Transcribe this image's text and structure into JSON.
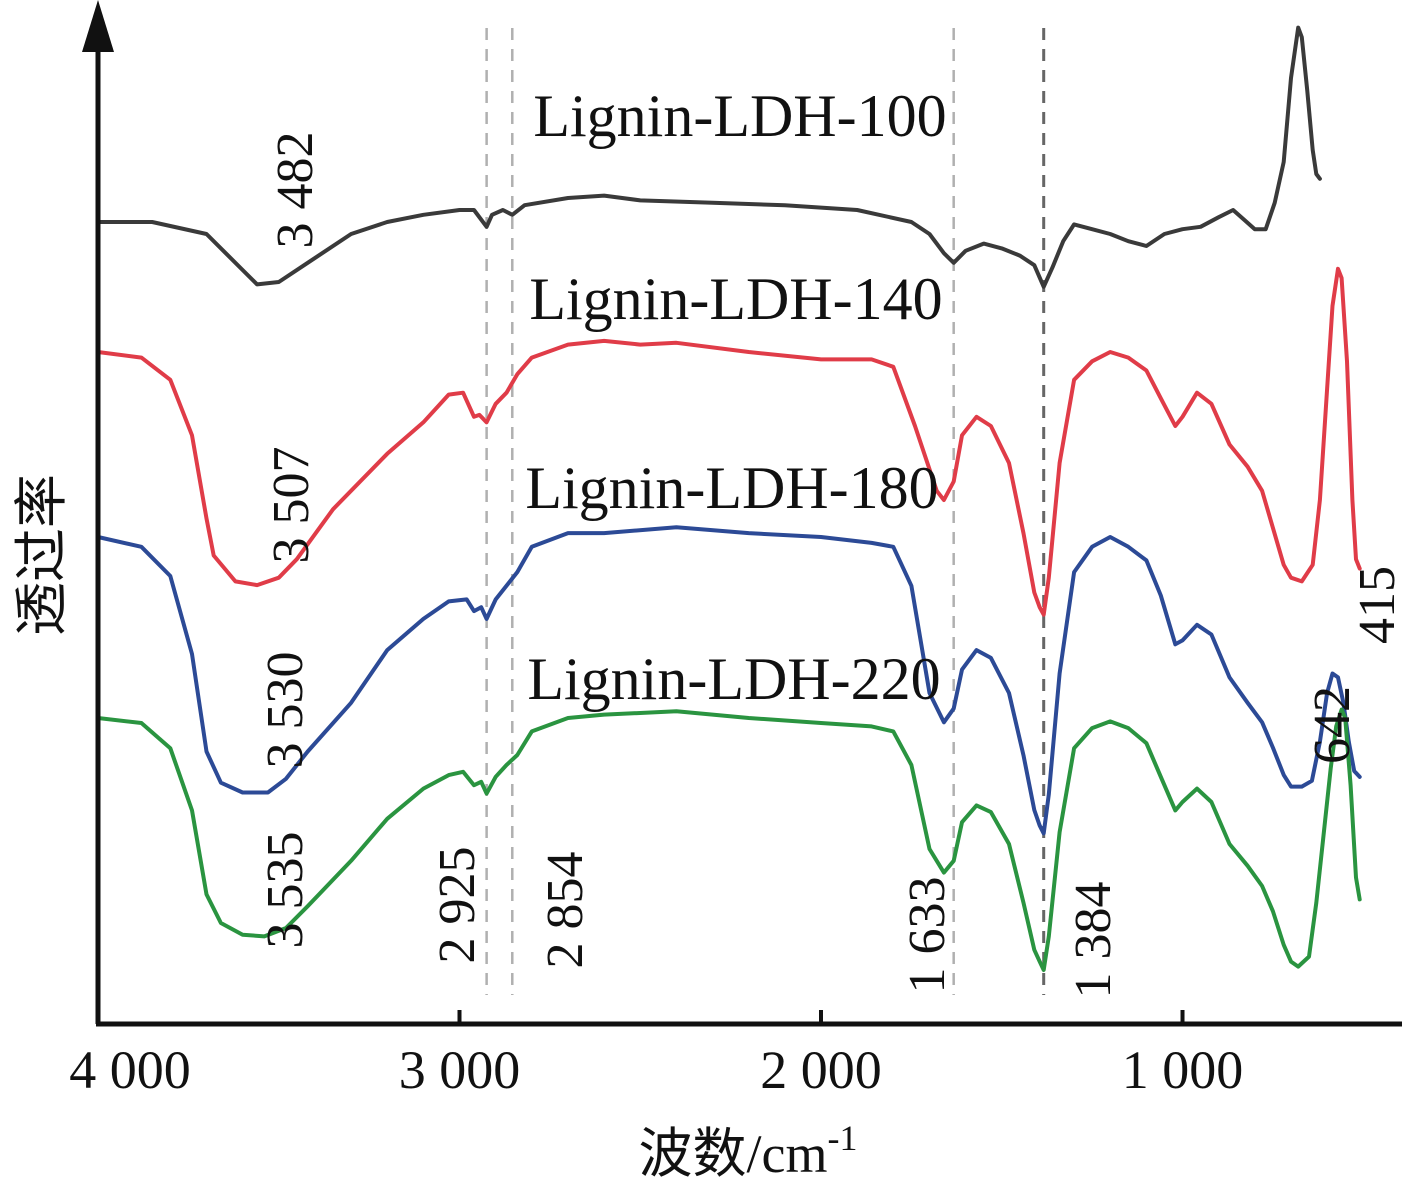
{
  "chart_data": {
    "type": "line",
    "title": "",
    "xlabel": "波数/cm",
    "xlabel_superscript": "-1",
    "ylabel": "透过率",
    "xlim": [
      4000,
      415
    ],
    "x_reversed": true,
    "x_ticks": [
      4000,
      3000,
      2000,
      1000
    ],
    "x_tick_labels": [
      "4 000",
      "3 000",
      "2 000",
      "1 000"
    ],
    "grid": false,
    "legend": "none",
    "reference_lines": [
      {
        "x": 2925,
        "label": "2 925"
      },
      {
        "x": 2854,
        "label": "2 854"
      },
      {
        "x": 1633,
        "label": "1 633"
      },
      {
        "x": 1384,
        "label": "1 384"
      }
    ],
    "series": [
      {
        "name": "Lignin-LDH-100",
        "color": "#3a3a3a",
        "peak_labels": [
          {
            "x": 3482,
            "text": "3 482"
          }
        ],
        "points": [
          [
            4000,
            0.05
          ],
          [
            3850,
            0.05
          ],
          [
            3700,
            0.1
          ],
          [
            3600,
            0.25
          ],
          [
            3560,
            0.31
          ],
          [
            3500,
            0.3
          ],
          [
            3420,
            0.22
          ],
          [
            3300,
            0.1
          ],
          [
            3200,
            0.05
          ],
          [
            3100,
            0.02
          ],
          [
            3000,
            0.0
          ],
          [
            2960,
            0.0
          ],
          [
            2925,
            0.07
          ],
          [
            2910,
            0.02
          ],
          [
            2880,
            0.0
          ],
          [
            2854,
            0.02
          ],
          [
            2820,
            -0.02
          ],
          [
            2700,
            -0.05
          ],
          [
            2600,
            -0.06
          ],
          [
            2500,
            -0.04
          ],
          [
            2300,
            -0.03
          ],
          [
            2100,
            -0.02
          ],
          [
            1900,
            0.0
          ],
          [
            1750,
            0.05
          ],
          [
            1700,
            0.1
          ],
          [
            1660,
            0.18
          ],
          [
            1633,
            0.22
          ],
          [
            1600,
            0.17
          ],
          [
            1550,
            0.14
          ],
          [
            1500,
            0.16
          ],
          [
            1450,
            0.19
          ],
          [
            1410,
            0.23
          ],
          [
            1384,
            0.32
          ],
          [
            1360,
            0.24
          ],
          [
            1330,
            0.13
          ],
          [
            1300,
            0.06
          ],
          [
            1250,
            0.08
          ],
          [
            1200,
            0.1
          ],
          [
            1150,
            0.13
          ],
          [
            1100,
            0.15
          ],
          [
            1050,
            0.1
          ],
          [
            1000,
            0.08
          ],
          [
            950,
            0.07
          ],
          [
            900,
            0.03
          ],
          [
            860,
            0.0
          ],
          [
            830,
            0.04
          ],
          [
            800,
            0.08
          ],
          [
            770,
            0.08
          ],
          [
            745,
            -0.03
          ],
          [
            720,
            -0.2
          ],
          [
            700,
            -0.55
          ],
          [
            680,
            -0.76
          ],
          [
            670,
            -0.72
          ],
          [
            655,
            -0.5
          ],
          [
            640,
            -0.25
          ],
          [
            630,
            -0.15
          ],
          [
            620,
            -0.13
          ]
        ]
      },
      {
        "name": "Lignin-LDH-140",
        "color": "#e03c48",
        "peak_labels": [
          {
            "x": 3507,
            "text": "3 507"
          }
        ],
        "points": [
          [
            4000,
            0.0
          ],
          [
            3880,
            0.03
          ],
          [
            3800,
            0.15
          ],
          [
            3740,
            0.45
          ],
          [
            3700,
            0.9
          ],
          [
            3680,
            1.1
          ],
          [
            3620,
            1.24
          ],
          [
            3560,
            1.26
          ],
          [
            3500,
            1.22
          ],
          [
            3450,
            1.12
          ],
          [
            3350,
            0.85
          ],
          [
            3200,
            0.55
          ],
          [
            3100,
            0.38
          ],
          [
            3030,
            0.23
          ],
          [
            2990,
            0.22
          ],
          [
            2960,
            0.35
          ],
          [
            2945,
            0.34
          ],
          [
            2925,
            0.38
          ],
          [
            2900,
            0.28
          ],
          [
            2870,
            0.22
          ],
          [
            2840,
            0.12
          ],
          [
            2800,
            0.03
          ],
          [
            2700,
            -0.04
          ],
          [
            2600,
            -0.06
          ],
          [
            2500,
            -0.04
          ],
          [
            2400,
            -0.05
          ],
          [
            2200,
            0.0
          ],
          [
            2000,
            0.04
          ],
          [
            1860,
            0.04
          ],
          [
            1800,
            0.08
          ],
          [
            1740,
            0.4
          ],
          [
            1680,
            0.75
          ],
          [
            1660,
            0.8
          ],
          [
            1633,
            0.7
          ],
          [
            1610,
            0.45
          ],
          [
            1570,
            0.35
          ],
          [
            1530,
            0.4
          ],
          [
            1480,
            0.6
          ],
          [
            1440,
            0.98
          ],
          [
            1410,
            1.3
          ],
          [
            1395,
            1.38
          ],
          [
            1384,
            1.42
          ],
          [
            1370,
            1.22
          ],
          [
            1340,
            0.6
          ],
          [
            1300,
            0.15
          ],
          [
            1250,
            0.05
          ],
          [
            1200,
            0.0
          ],
          [
            1150,
            0.03
          ],
          [
            1100,
            0.1
          ],
          [
            1060,
            0.25
          ],
          [
            1020,
            0.4
          ],
          [
            1000,
            0.35
          ],
          [
            960,
            0.22
          ],
          [
            920,
            0.28
          ],
          [
            870,
            0.5
          ],
          [
            820,
            0.62
          ],
          [
            780,
            0.75
          ],
          [
            750,
            0.95
          ],
          [
            720,
            1.15
          ],
          [
            700,
            1.22
          ],
          [
            670,
            1.24
          ],
          [
            640,
            1.15
          ],
          [
            620,
            0.8
          ],
          [
            600,
            0.2
          ],
          [
            585,
            -0.25
          ],
          [
            570,
            -0.45
          ],
          [
            560,
            -0.4
          ],
          [
            545,
            0.05
          ],
          [
            530,
            0.8
          ],
          [
            520,
            1.12
          ],
          [
            510,
            1.17
          ]
        ]
      },
      {
        "name": "Lignin-LDH-180",
        "color": "#2c4a96",
        "peak_labels": [
          {
            "x": 3530,
            "text": "3 530"
          },
          {
            "x": 642,
            "text": "642"
          },
          {
            "x": 415,
            "text": "415"
          }
        ],
        "points": [
          [
            4000,
            0.0
          ],
          [
            3880,
            0.05
          ],
          [
            3800,
            0.2
          ],
          [
            3740,
            0.6
          ],
          [
            3700,
            1.1
          ],
          [
            3660,
            1.26
          ],
          [
            3600,
            1.31
          ],
          [
            3530,
            1.31
          ],
          [
            3480,
            1.24
          ],
          [
            3420,
            1.1
          ],
          [
            3300,
            0.85
          ],
          [
            3200,
            0.58
          ],
          [
            3100,
            0.42
          ],
          [
            3030,
            0.33
          ],
          [
            2980,
            0.32
          ],
          [
            2960,
            0.38
          ],
          [
            2940,
            0.36
          ],
          [
            2925,
            0.42
          ],
          [
            2900,
            0.32
          ],
          [
            2870,
            0.25
          ],
          [
            2840,
            0.18
          ],
          [
            2800,
            0.05
          ],
          [
            2700,
            -0.02
          ],
          [
            2600,
            -0.02
          ],
          [
            2400,
            -0.05
          ],
          [
            2200,
            -0.02
          ],
          [
            2000,
            0.0
          ],
          [
            1860,
            0.03
          ],
          [
            1800,
            0.05
          ],
          [
            1750,
            0.25
          ],
          [
            1700,
            0.8
          ],
          [
            1660,
            0.95
          ],
          [
            1633,
            0.88
          ],
          [
            1610,
            0.68
          ],
          [
            1570,
            0.58
          ],
          [
            1530,
            0.62
          ],
          [
            1480,
            0.8
          ],
          [
            1440,
            1.12
          ],
          [
            1410,
            1.4
          ],
          [
            1395,
            1.48
          ],
          [
            1384,
            1.52
          ],
          [
            1370,
            1.32
          ],
          [
            1340,
            0.7
          ],
          [
            1300,
            0.18
          ],
          [
            1250,
            0.05
          ],
          [
            1200,
            0.0
          ],
          [
            1150,
            0.05
          ],
          [
            1100,
            0.12
          ],
          [
            1060,
            0.3
          ],
          [
            1020,
            0.55
          ],
          [
            1000,
            0.53
          ],
          [
            960,
            0.45
          ],
          [
            920,
            0.5
          ],
          [
            870,
            0.72
          ],
          [
            820,
            0.85
          ],
          [
            780,
            0.95
          ],
          [
            750,
            1.08
          ],
          [
            720,
            1.22
          ],
          [
            700,
            1.28
          ],
          [
            670,
            1.28
          ],
          [
            642,
            1.25
          ],
          [
            620,
            1.05
          ],
          [
            600,
            0.8
          ],
          [
            585,
            0.7
          ],
          [
            570,
            0.72
          ],
          [
            555,
            0.85
          ],
          [
            540,
            1.05
          ],
          [
            525,
            1.2
          ],
          [
            510,
            1.23
          ]
        ]
      },
      {
        "name": "Lignin-LDH-220",
        "color": "#2a9440",
        "peak_labels": [
          {
            "x": 3535,
            "text": "3 535"
          }
        ],
        "points": [
          [
            4000,
            0.0
          ],
          [
            3880,
            0.03
          ],
          [
            3800,
            0.18
          ],
          [
            3740,
            0.55
          ],
          [
            3700,
            1.05
          ],
          [
            3660,
            1.22
          ],
          [
            3600,
            1.29
          ],
          [
            3540,
            1.3
          ],
          [
            3480,
            1.25
          ],
          [
            3420,
            1.12
          ],
          [
            3300,
            0.85
          ],
          [
            3200,
            0.6
          ],
          [
            3100,
            0.42
          ],
          [
            3030,
            0.34
          ],
          [
            2990,
            0.32
          ],
          [
            2960,
            0.4
          ],
          [
            2940,
            0.38
          ],
          [
            2925,
            0.45
          ],
          [
            2900,
            0.35
          ],
          [
            2870,
            0.28
          ],
          [
            2840,
            0.22
          ],
          [
            2800,
            0.08
          ],
          [
            2700,
            0.0
          ],
          [
            2600,
            -0.02
          ],
          [
            2400,
            -0.04
          ],
          [
            2200,
            0.0
          ],
          [
            2000,
            0.03
          ],
          [
            1860,
            0.05
          ],
          [
            1800,
            0.08
          ],
          [
            1750,
            0.28
          ],
          [
            1700,
            0.78
          ],
          [
            1660,
            0.92
          ],
          [
            1633,
            0.85
          ],
          [
            1610,
            0.62
          ],
          [
            1570,
            0.52
          ],
          [
            1530,
            0.56
          ],
          [
            1480,
            0.75
          ],
          [
            1440,
            1.1
          ],
          [
            1410,
            1.38
          ],
          [
            1395,
            1.45
          ],
          [
            1384,
            1.5
          ],
          [
            1370,
            1.3
          ],
          [
            1340,
            0.68
          ],
          [
            1300,
            0.18
          ],
          [
            1250,
            0.06
          ],
          [
            1200,
            0.02
          ],
          [
            1150,
            0.06
          ],
          [
            1100,
            0.15
          ],
          [
            1060,
            0.35
          ],
          [
            1020,
            0.55
          ],
          [
            1000,
            0.5
          ],
          [
            960,
            0.42
          ],
          [
            920,
            0.5
          ],
          [
            870,
            0.75
          ],
          [
            820,
            0.88
          ],
          [
            780,
            1.0
          ],
          [
            750,
            1.15
          ],
          [
            720,
            1.35
          ],
          [
            700,
            1.45
          ],
          [
            680,
            1.48
          ],
          [
            650,
            1.42
          ],
          [
            630,
            1.1
          ],
          [
            610,
            0.7
          ],
          [
            590,
            0.3
          ],
          [
            575,
            0.05
          ],
          [
            560,
            -0.05
          ],
          [
            550,
            0.0
          ],
          [
            535,
            0.4
          ],
          [
            520,
            0.95
          ],
          [
            510,
            1.08
          ]
        ]
      }
    ]
  }
}
